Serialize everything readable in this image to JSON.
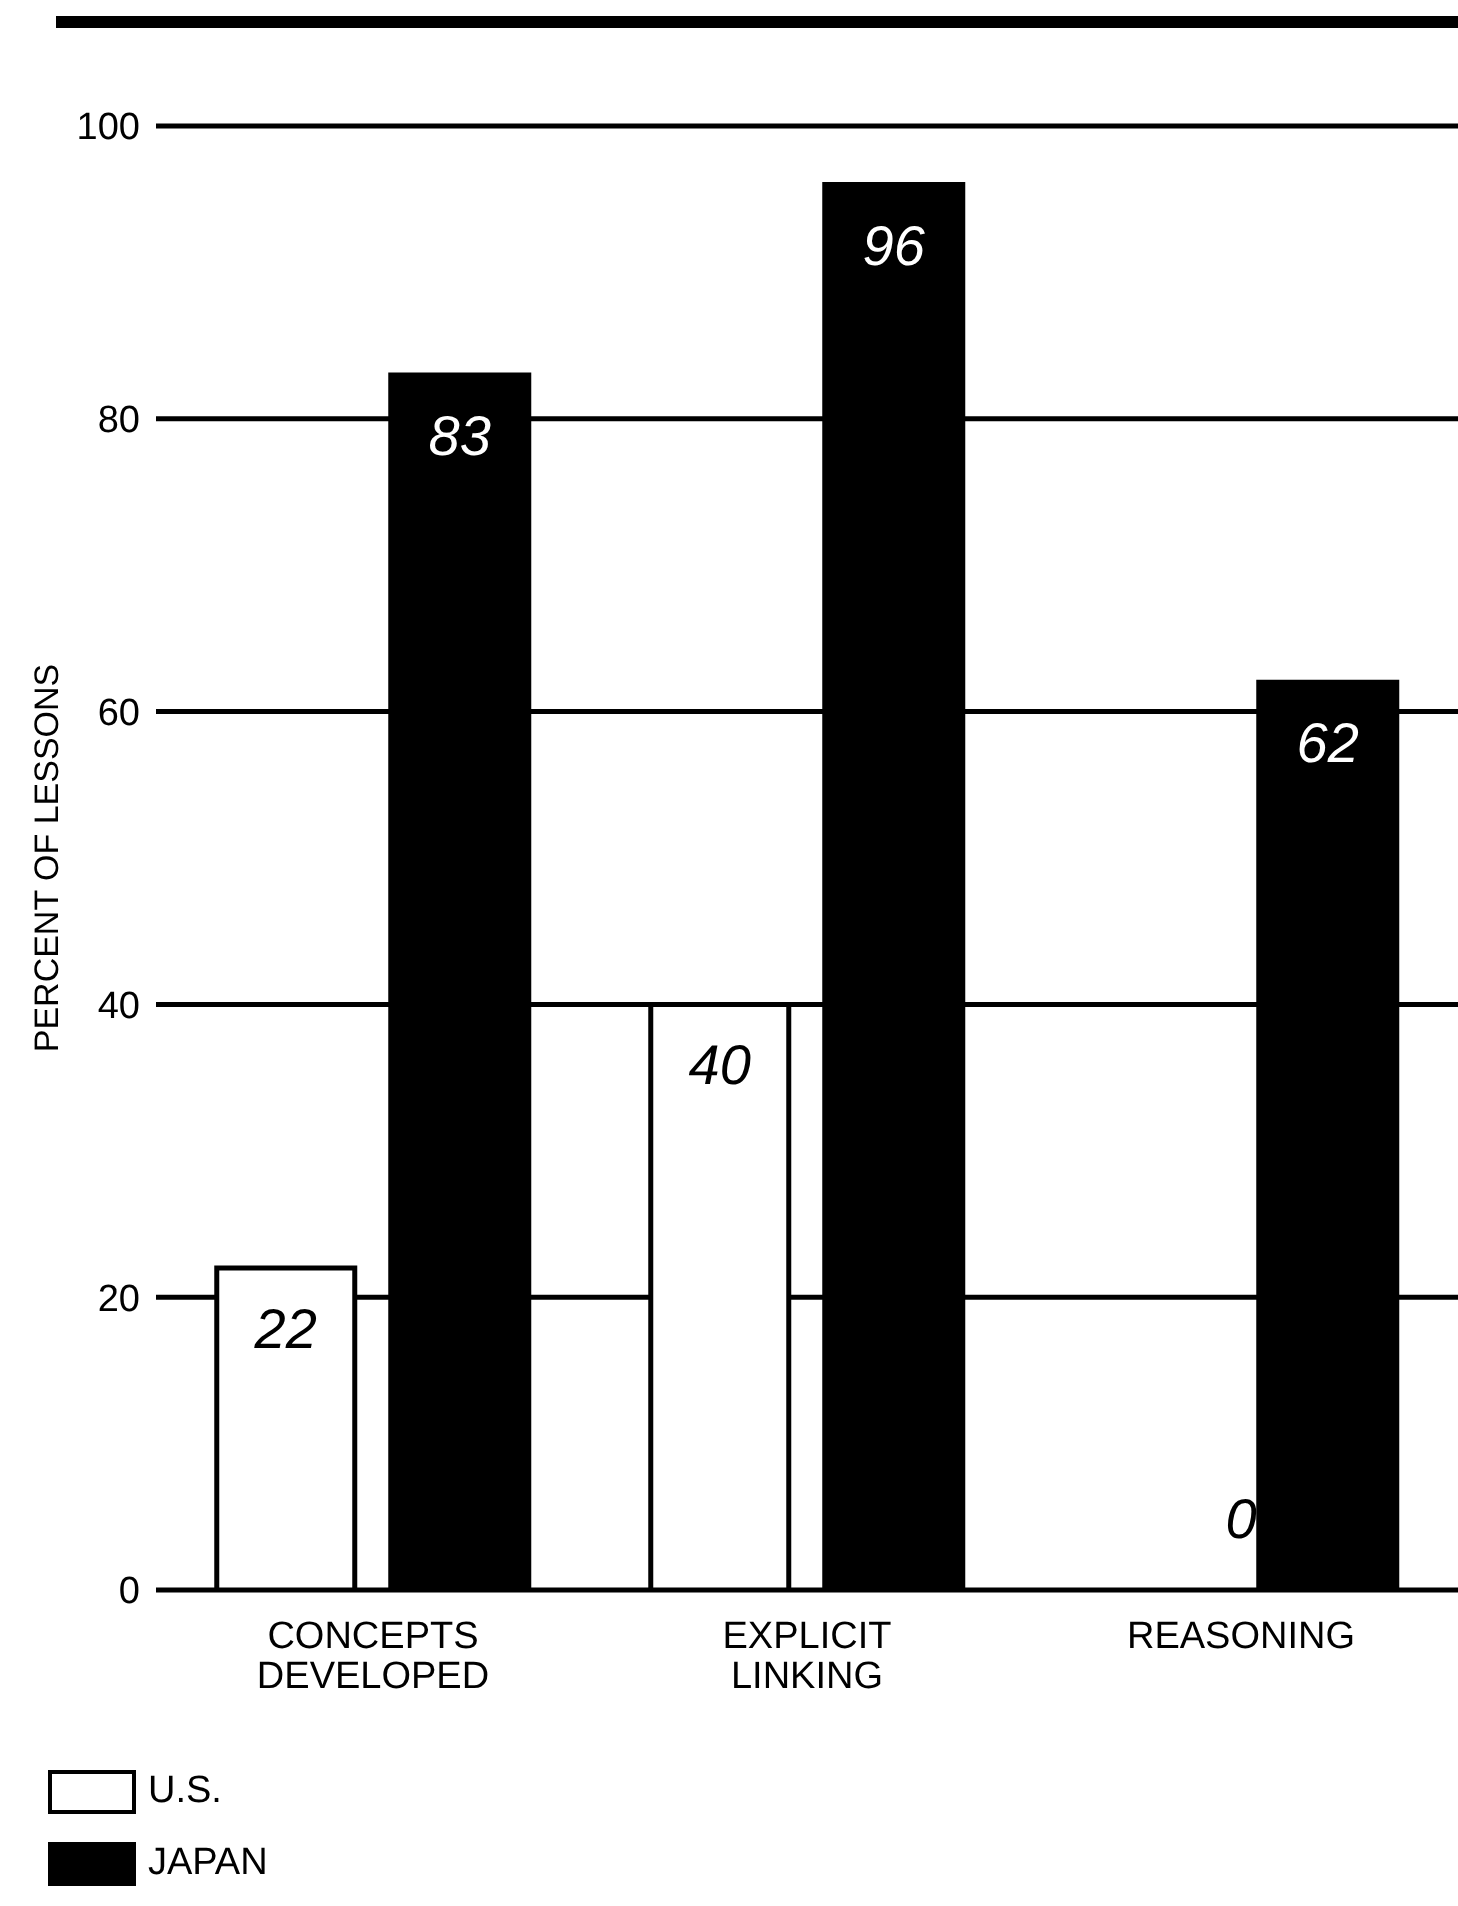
{
  "chart_data": {
    "type": "bar",
    "ylabel": "PERCENT OF LESSONS",
    "categories": [
      "CONCEPTS\nDEVELOPED",
      "EXPLICIT\nLINKING",
      "REASONING"
    ],
    "series": [
      {
        "name": "U.S.",
        "color": "#ffffff",
        "values": [
          22,
          40,
          0
        ]
      },
      {
        "name": "JAPAN",
        "color": "#000000",
        "values": [
          83,
          96,
          62
        ]
      }
    ],
    "ylim": [
      0,
      100
    ],
    "yticks": [
      0,
      20,
      40,
      60,
      80,
      100
    ],
    "grid": "y",
    "legend": "bottom left",
    "data_labels": true
  }
}
